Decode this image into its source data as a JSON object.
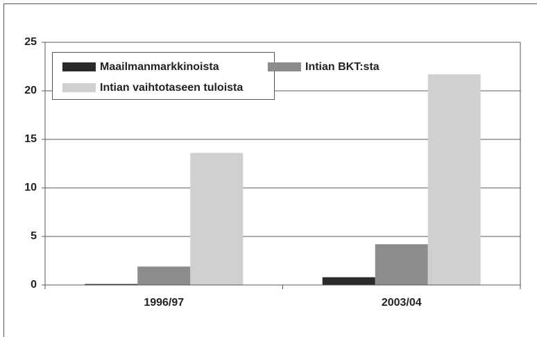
{
  "chart_data": {
    "type": "bar",
    "categories": [
      "1996/97",
      "2003/04"
    ],
    "series": [
      {
        "name": "Maailmanmarkkinoista",
        "color": "#2a2a2a",
        "values": [
          0.1,
          0.8
        ]
      },
      {
        "name": "Intian BKT:sta",
        "color": "#8c8c8c",
        "values": [
          1.9,
          4.2
        ]
      },
      {
        "name": "Intian vaihtotaseen tuloista",
        "color": "#d0d0d0",
        "values": [
          13.6,
          21.7
        ]
      }
    ],
    "ylim": [
      0,
      25
    ],
    "yticks": [
      0,
      5,
      10,
      15,
      20,
      25
    ],
    "grid": true
  }
}
